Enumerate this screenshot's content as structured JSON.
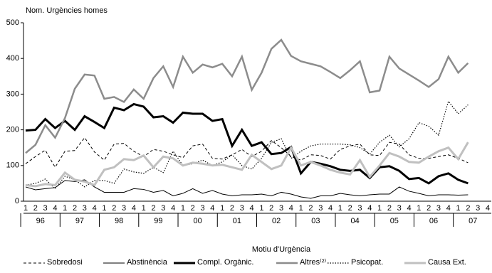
{
  "chart_data": {
    "type": "line",
    "title": "Nom. Urgències homes",
    "legend_title": "Motiu d'Urgència",
    "legend": "bottom",
    "grid": false,
    "categories": [
      "1",
      "2",
      "3",
      "4",
      "1",
      "2",
      "3",
      "4",
      "1",
      "2",
      "3",
      "4",
      "1",
      "2",
      "3",
      "4",
      "1",
      "2",
      "3",
      "4",
      "1",
      "2",
      "3",
      "4",
      "1",
      "2",
      "3",
      "4",
      "1",
      "2",
      "3",
      "4",
      "1",
      "2",
      "3",
      "4",
      "1",
      "2",
      "3",
      "4",
      "1",
      "2",
      "3",
      "4",
      "1",
      "2",
      "3",
      "4"
    ],
    "years": [
      "96",
      "97",
      "98",
      "99",
      "00",
      "01",
      "02",
      "03",
      "04",
      "05",
      "06",
      "07"
    ],
    "ylim": [
      0,
      500
    ],
    "yticks": [
      0,
      100,
      200,
      300,
      400,
      500
    ],
    "series": [
      {
        "name": "Sobredosi",
        "color": "#000000",
        "width": 1,
        "dash": "4 3",
        "values": [
          105,
          125,
          143,
          95,
          140,
          142,
          178,
          138,
          115,
          160,
          162,
          140,
          125,
          145,
          140,
          130,
          122,
          155,
          160,
          120,
          118,
          130,
          145,
          125,
          140,
          170,
          150,
          125,
          115,
          130,
          128,
          118,
          145,
          155,
          160,
          130,
          128,
          165,
          160,
          130,
          120,
          120,
          125,
          130,
          120,
          108,
          null,
          null
        ]
      },
      {
        "name": "Abstinència",
        "color": "#000000",
        "width": 1,
        "dash": "",
        "values": [
          40,
          32,
          35,
          38,
          58,
          55,
          60,
          40,
          25,
          25,
          25,
          35,
          33,
          25,
          30,
          15,
          22,
          35,
          22,
          30,
          20,
          15,
          18,
          18,
          20,
          15,
          25,
          20,
          12,
          8,
          15,
          15,
          22,
          18,
          15,
          18,
          20,
          20,
          40,
          28,
          22,
          15,
          18,
          18,
          17,
          18,
          null,
          null
        ]
      },
      {
        "name": "Compl. Orgànic.",
        "color": "#000000",
        "width": 3,
        "dash": "",
        "values": [
          198,
          200,
          230,
          205,
          225,
          200,
          238,
          222,
          205,
          262,
          255,
          272,
          265,
          235,
          238,
          220,
          248,
          245,
          245,
          225,
          230,
          155,
          200,
          155,
          165,
          132,
          135,
          152,
          78,
          110,
          105,
          98,
          88,
          85,
          88,
          65,
          95,
          98,
          85,
          62,
          65,
          50,
          70,
          78,
          60,
          50,
          null,
          null
        ]
      },
      {
        "name": "Altres⁽²⁾",
        "color": "#8c8c8c",
        "width": 2.5,
        "dash": "",
        "values": [
          135,
          158,
          213,
          178,
          233,
          315,
          355,
          352,
          287,
          292,
          278,
          313,
          287,
          345,
          378,
          320,
          405,
          360,
          383,
          375,
          385,
          350,
          405,
          312,
          360,
          427,
          452,
          407,
          392,
          385,
          378,
          362,
          345,
          367,
          392,
          305,
          310,
          405,
          372,
          355,
          338,
          320,
          342,
          405,
          360,
          387,
          null,
          null
        ]
      },
      {
        "name": "Psicopat.",
        "color": "#000000",
        "width": 1.2,
        "dash": "1.5 2",
        "values": [
          45,
          50,
          62,
          35,
          70,
          60,
          40,
          58,
          58,
          50,
          90,
          82,
          78,
          95,
          80,
          140,
          100,
          105,
          115,
          100,
          110,
          130,
          100,
          90,
          120,
          165,
          175,
          120,
          140,
          155,
          160,
          160,
          160,
          158,
          150,
          132,
          165,
          185,
          152,
          175,
          220,
          210,
          185,
          280,
          245,
          270,
          null,
          null
        ]
      },
      {
        "name": "Causa Ext.",
        "color": "#c0c0c0",
        "width": 3,
        "dash": "",
        "values": [
          45,
          42,
          48,
          45,
          80,
          60,
          55,
          45,
          88,
          95,
          118,
          115,
          128,
          95,
          125,
          120,
          100,
          108,
          105,
          100,
          102,
          95,
          88,
          130,
          110,
          90,
          100,
          150,
          100,
          110,
          100,
          88,
          80,
          75,
          115,
          68,
          100,
          135,
          125,
          110,
          108,
          125,
          140,
          150,
          118,
          165,
          null,
          null
        ]
      }
    ]
  }
}
